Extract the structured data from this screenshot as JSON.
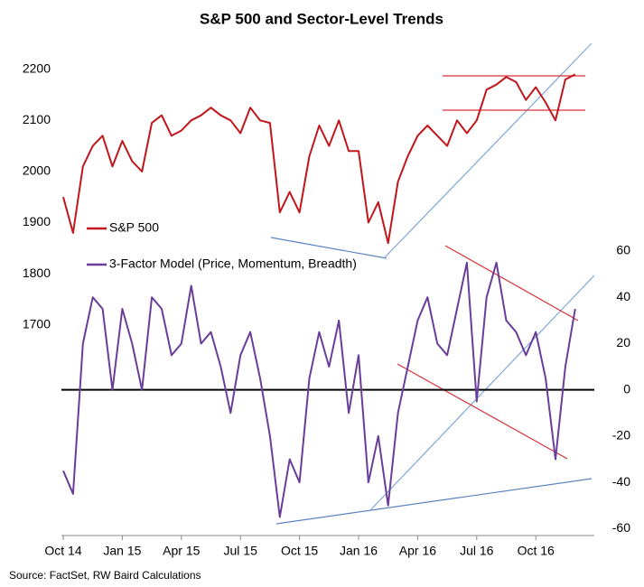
{
  "chart_data": {
    "type": "line",
    "title": "S&P 500 and Sector-Level Trends",
    "source": "Source: FactSet, RW Baird Calculations",
    "categories": [
      "Oct 14",
      null,
      null,
      null,
      null,
      null,
      "Jan 15",
      null,
      null,
      null,
      null,
      null,
      "Apr 15",
      null,
      null,
      null,
      null,
      null,
      "Jul 15",
      null,
      null,
      null,
      null,
      null,
      "Oct 15",
      null,
      null,
      null,
      null,
      null,
      "Jan 16",
      null,
      null,
      null,
      null,
      null,
      "Apr 16",
      null,
      null,
      null,
      null,
      null,
      "Jul 16",
      null,
      null,
      null,
      null,
      null,
      "Oct 16",
      null,
      null,
      null,
      null
    ],
    "series": [
      {
        "name": "S&P 500",
        "color": "#c0161b",
        "values": [
          1950,
          1880,
          2010,
          2050,
          2070,
          2010,
          2060,
          2020,
          2000,
          2095,
          2110,
          2070,
          2080,
          2100,
          2110,
          2125,
          2110,
          2100,
          2075,
          2125,
          2100,
          2095,
          1920,
          1960,
          1920,
          2030,
          2090,
          2050,
          2100,
          2040,
          2040,
          1900,
          1940,
          1860,
          1980,
          2030,
          2070,
          2090,
          2070,
          2050,
          2100,
          2075,
          2100,
          2160,
          2170,
          2185,
          2175,
          2140,
          2165,
          2135,
          2100,
          2180,
          2190
        ]
      },
      {
        "name": "3-Factor Model (Price, Momentum, Breadth)",
        "color": "#6a3d9a",
        "axis": "y2",
        "values": [
          -35,
          -45,
          20,
          40,
          35,
          0,
          35,
          20,
          0,
          40,
          35,
          15,
          20,
          45,
          20,
          25,
          10,
          -10,
          15,
          25,
          5,
          -20,
          -55,
          -30,
          -40,
          5,
          25,
          10,
          30,
          -10,
          15,
          -40,
          -20,
          -50,
          -10,
          10,
          30,
          40,
          20,
          15,
          35,
          55,
          -5,
          40,
          55,
          30,
          25,
          15,
          25,
          5,
          -30,
          10,
          35
        ]
      }
    ],
    "ylim": [
      1288,
      2256
    ],
    "yticks": [
      1700,
      1800,
      1900,
      2000,
      2100,
      2200
    ],
    "y2lim": [
      -63,
      151
    ],
    "y2ticks": [
      -60,
      -40,
      -20,
      0,
      20,
      40,
      60
    ],
    "legend": "upper left"
  }
}
